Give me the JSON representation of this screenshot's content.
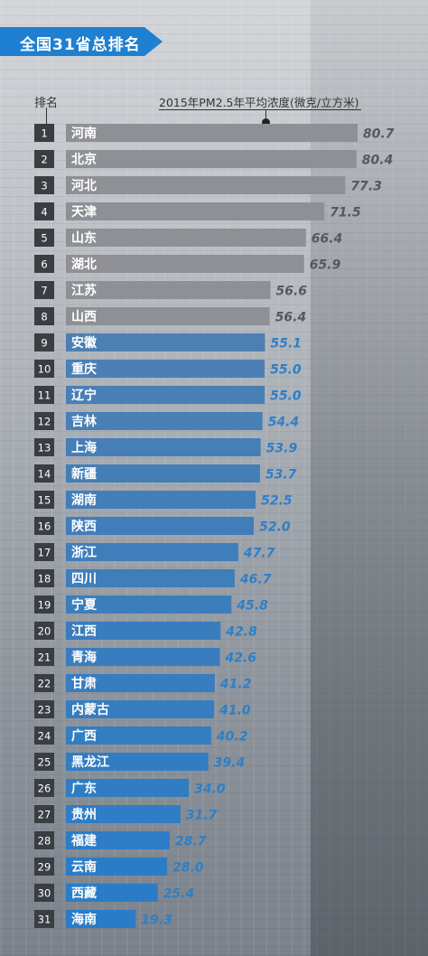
{
  "header": {
    "title": "全国31省总排名",
    "rank_heading": "排名",
    "unit_label": "2015年PM2.5年平均浓度(微克/立方米)"
  },
  "colors": {
    "banner": "#1f7fd0",
    "bar_gray": "#8e9095",
    "bar_blue": "#3a86c6",
    "rank_box": "#3a3d42",
    "value_gray": "#55585e",
    "value_blue": "#2d7fc7"
  },
  "chart_data": {
    "type": "bar",
    "orientation": "horizontal",
    "title": "全国31省总排名",
    "value_label": "2015年PM2.5年平均浓度(微克/立方米)",
    "xlim": [
      0,
      82
    ],
    "ranks": [
      "1",
      "2",
      "3",
      "4",
      "5",
      "6",
      "7",
      "8",
      "9",
      "10",
      "11",
      "12",
      "13",
      "14",
      "15",
      "16",
      "17",
      "18",
      "19",
      "20",
      "21",
      "22",
      "23",
      "24",
      "25",
      "26",
      "27",
      "28",
      "29",
      "30",
      "31"
    ],
    "categories": [
      "河南",
      "北京",
      "河北",
      "天津",
      "山东",
      "湖北",
      "江苏",
      "山西",
      "安徽",
      "重庆",
      "辽宁",
      "吉林",
      "上海",
      "新疆",
      "湖南",
      "陕西",
      "浙江",
      "四川",
      "宁夏",
      "江西",
      "青海",
      "甘肃",
      "内蒙古",
      "广西",
      "黑龙江",
      "广东",
      "贵州",
      "福建",
      "云南",
      "西藏",
      "海南"
    ],
    "values": [
      80.7,
      80.4,
      77.3,
      71.5,
      66.4,
      65.9,
      56.6,
      56.4,
      55.1,
      55.0,
      55.0,
      54.4,
      53.9,
      53.7,
      52.5,
      52.0,
      47.7,
      46.7,
      45.8,
      42.8,
      42.6,
      41.2,
      41.0,
      40.2,
      39.4,
      34.0,
      31.7,
      28.7,
      28.0,
      25.4,
      19.3
    ],
    "value_labels": [
      "80.7",
      "80.4",
      "77.3",
      "71.5",
      "66.4",
      "65.9",
      "56.6",
      "56.4",
      "55.1",
      "55.0",
      "55.0",
      "54.4",
      "53.9",
      "53.7",
      "52.5",
      "52.0",
      "47.7",
      "46.7",
      "45.8",
      "42.8",
      "42.6",
      "41.2",
      "41.0",
      "40.2",
      "39.4",
      "34.0",
      "31.7",
      "28.7",
      "28.0",
      "25.4",
      "19.3"
    ]
  }
}
